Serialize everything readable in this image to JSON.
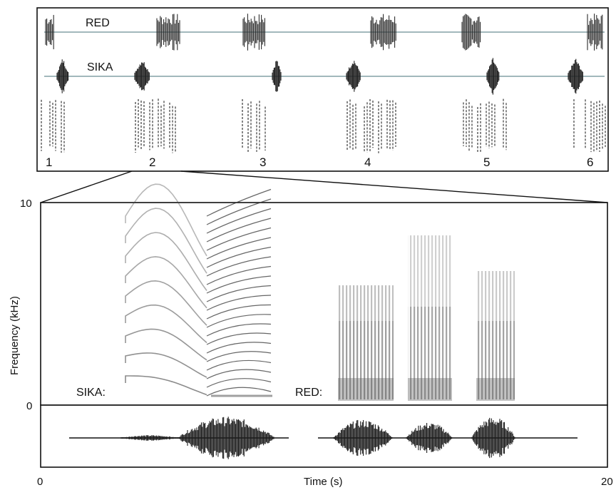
{
  "overview": {
    "red_label": "RED",
    "sika_label": "SIKA",
    "call_numbers": [
      "1",
      "2",
      "3",
      "4",
      "5",
      "6"
    ]
  },
  "detail": {
    "y_axis_label": "Frequency (kHz)",
    "y_tick_top": "10",
    "y_tick_bottom": "0",
    "x_axis_label": "Time (s)",
    "x_tick_left": "0",
    "x_tick_right": "20",
    "sika_label": "SIKA:",
    "red_label": "RED:"
  },
  "colors": {
    "axis": "#111111",
    "waveform_line": "#6b8d94",
    "ink": "#222222"
  }
}
